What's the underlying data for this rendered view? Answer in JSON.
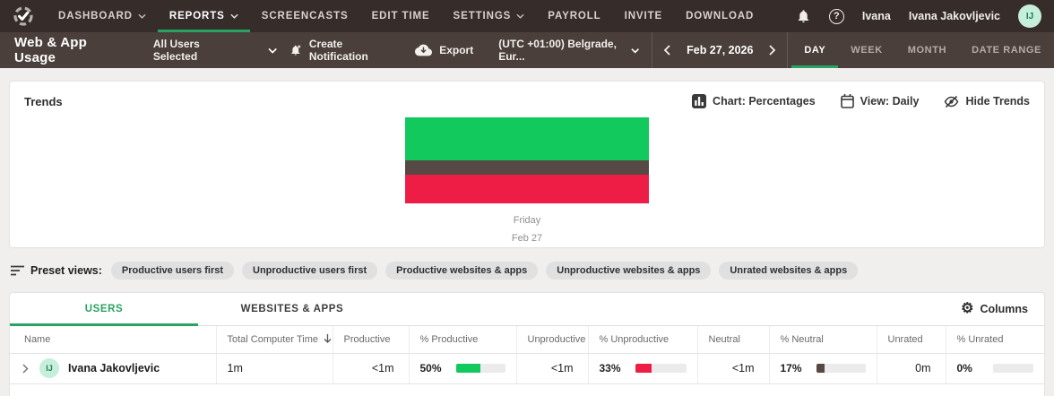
{
  "navbar": {
    "items": [
      {
        "label": "DASHBOARD",
        "dropdown": true,
        "active": false
      },
      {
        "label": "REPORTS",
        "dropdown": true,
        "active": true
      },
      {
        "label": "SCREENCASTS",
        "dropdown": false,
        "active": false
      },
      {
        "label": "EDIT TIME",
        "dropdown": false,
        "active": false
      },
      {
        "label": "SETTINGS",
        "dropdown": true,
        "active": false
      },
      {
        "label": "PAYROLL",
        "dropdown": false,
        "active": false
      },
      {
        "label": "INVITE",
        "dropdown": false,
        "active": false
      },
      {
        "label": "DOWNLOAD",
        "dropdown": false,
        "active": false
      }
    ],
    "workspace_name": "Ivana",
    "user_name": "Ivana Jakovljevic",
    "avatar_initials": "IJ"
  },
  "icons": {
    "help_glyph": "?",
    "gear_glyph": "⚙"
  },
  "subheader": {
    "title": "Web & App Usage",
    "users_filter": "All Users Selected",
    "create_notification_label": "Create Notification",
    "export_label": "Export",
    "timezone": "(UTC +01:00) Belgrade, Eur...",
    "date": "Feb 27, 2026",
    "range_tabs": [
      {
        "label": "DAY",
        "active": true
      },
      {
        "label": "WEEK",
        "active": false
      },
      {
        "label": "MONTH",
        "active": false
      },
      {
        "label": "DATE RANGE",
        "active": false
      }
    ]
  },
  "trends": {
    "title": "Trends",
    "chart_button": "Chart: Percentages",
    "view_button": "View: Daily",
    "hide_button": "Hide Trends"
  },
  "chart_data": {
    "type": "bar",
    "stacked": true,
    "orientation": "vertical",
    "categories": [
      "Friday"
    ],
    "category_sublabels": [
      "Feb 27"
    ],
    "series": [
      {
        "name": "Productive",
        "values": [
          50
        ],
        "color": "#12c95d"
      },
      {
        "name": "Neutral",
        "values": [
          17
        ],
        "color": "#564842"
      },
      {
        "name": "Unproductive",
        "values": [
          33
        ],
        "color": "#ed1d45"
      }
    ],
    "unit": "%",
    "ylim": [
      0,
      100
    ],
    "legend": false,
    "grid": false
  },
  "preset_views": {
    "label": "Preset views:",
    "chips": [
      "Productive users first",
      "Unproductive users first",
      "Productive websites & apps",
      "Unproductive websites & apps",
      "Unrated websites & apps"
    ]
  },
  "table": {
    "tabs": [
      {
        "label": "USERS",
        "active": true
      },
      {
        "label": "WEBSITES & APPS",
        "active": false
      }
    ],
    "columns_button": "Columns",
    "headers": [
      "Name",
      "Total Computer Time",
      "Productive",
      "% Productive",
      "Unproductive",
      "% Unproductive",
      "Neutral",
      "% Neutral",
      "Unrated",
      "% Unrated"
    ],
    "sort": {
      "column": "Total Computer Time",
      "direction": "desc"
    },
    "rows": [
      {
        "avatar_initials": "IJ",
        "name": "Ivana Jakovljevic",
        "total_computer_time": "1m",
        "productive": "<1m",
        "pct_productive_label": "50%",
        "pct_productive": 50,
        "unproductive": "<1m",
        "pct_unproductive_label": "33%",
        "pct_unproductive": 33,
        "neutral": "<1m",
        "pct_neutral_label": "17%",
        "pct_neutral": 17,
        "unrated": "0m",
        "pct_unrated_label": "0%",
        "pct_unrated": 0
      }
    ]
  },
  "colors": {
    "accent_green": "#2aa263",
    "productive": "#12c95d",
    "unproductive": "#ed1d45",
    "neutral": "#564842",
    "topbar_bg": "#362d2a",
    "subheader_bg": "#4a3f3a"
  }
}
